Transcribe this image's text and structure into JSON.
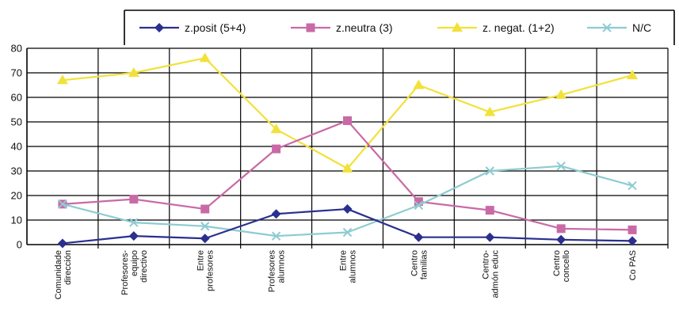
{
  "chart_data": {
    "type": "line",
    "title": "",
    "xlabel": "",
    "ylabel": "",
    "ylim": [
      0,
      80
    ],
    "yticks": [
      0,
      10,
      20,
      30,
      40,
      50,
      60,
      70,
      80
    ],
    "grid": true,
    "legend_position": "top",
    "categories": [
      [
        "Comunidade",
        "dirección"
      ],
      [
        "Profesores-",
        "equipo",
        "directivo"
      ],
      [
        "Entre",
        "profesores"
      ],
      [
        "Profesores",
        "alumnos"
      ],
      [
        "Entre",
        "alumnos"
      ],
      [
        "Centro",
        "familias"
      ],
      [
        "Centro-",
        "admón educ"
      ],
      [
        "Centro",
        "concello"
      ],
      [
        "Co PAS"
      ]
    ],
    "series": [
      {
        "name": "z.posit (5+4)",
        "color": "#2b2f8f",
        "marker": "diamond",
        "values": [
          0.5,
          3.5,
          2.5,
          12.5,
          14.5,
          3,
          3,
          2,
          1.5
        ]
      },
      {
        "name": "z.neutra (3)",
        "color": "#c96aa6",
        "marker": "square",
        "values": [
          16.5,
          18.5,
          14.5,
          39,
          50.5,
          17.5,
          14,
          6.5,
          6
        ]
      },
      {
        "name": "z. negat. (1+2)",
        "color": "#f2e13a",
        "marker": "triangle",
        "values": [
          67,
          70,
          76,
          47,
          31,
          65,
          54,
          61,
          69
        ]
      },
      {
        "name": "N/C",
        "color": "#8ecbd1",
        "marker": "x",
        "values": [
          16.5,
          9,
          7.5,
          3.5,
          5,
          16,
          30,
          32,
          24
        ]
      }
    ]
  }
}
